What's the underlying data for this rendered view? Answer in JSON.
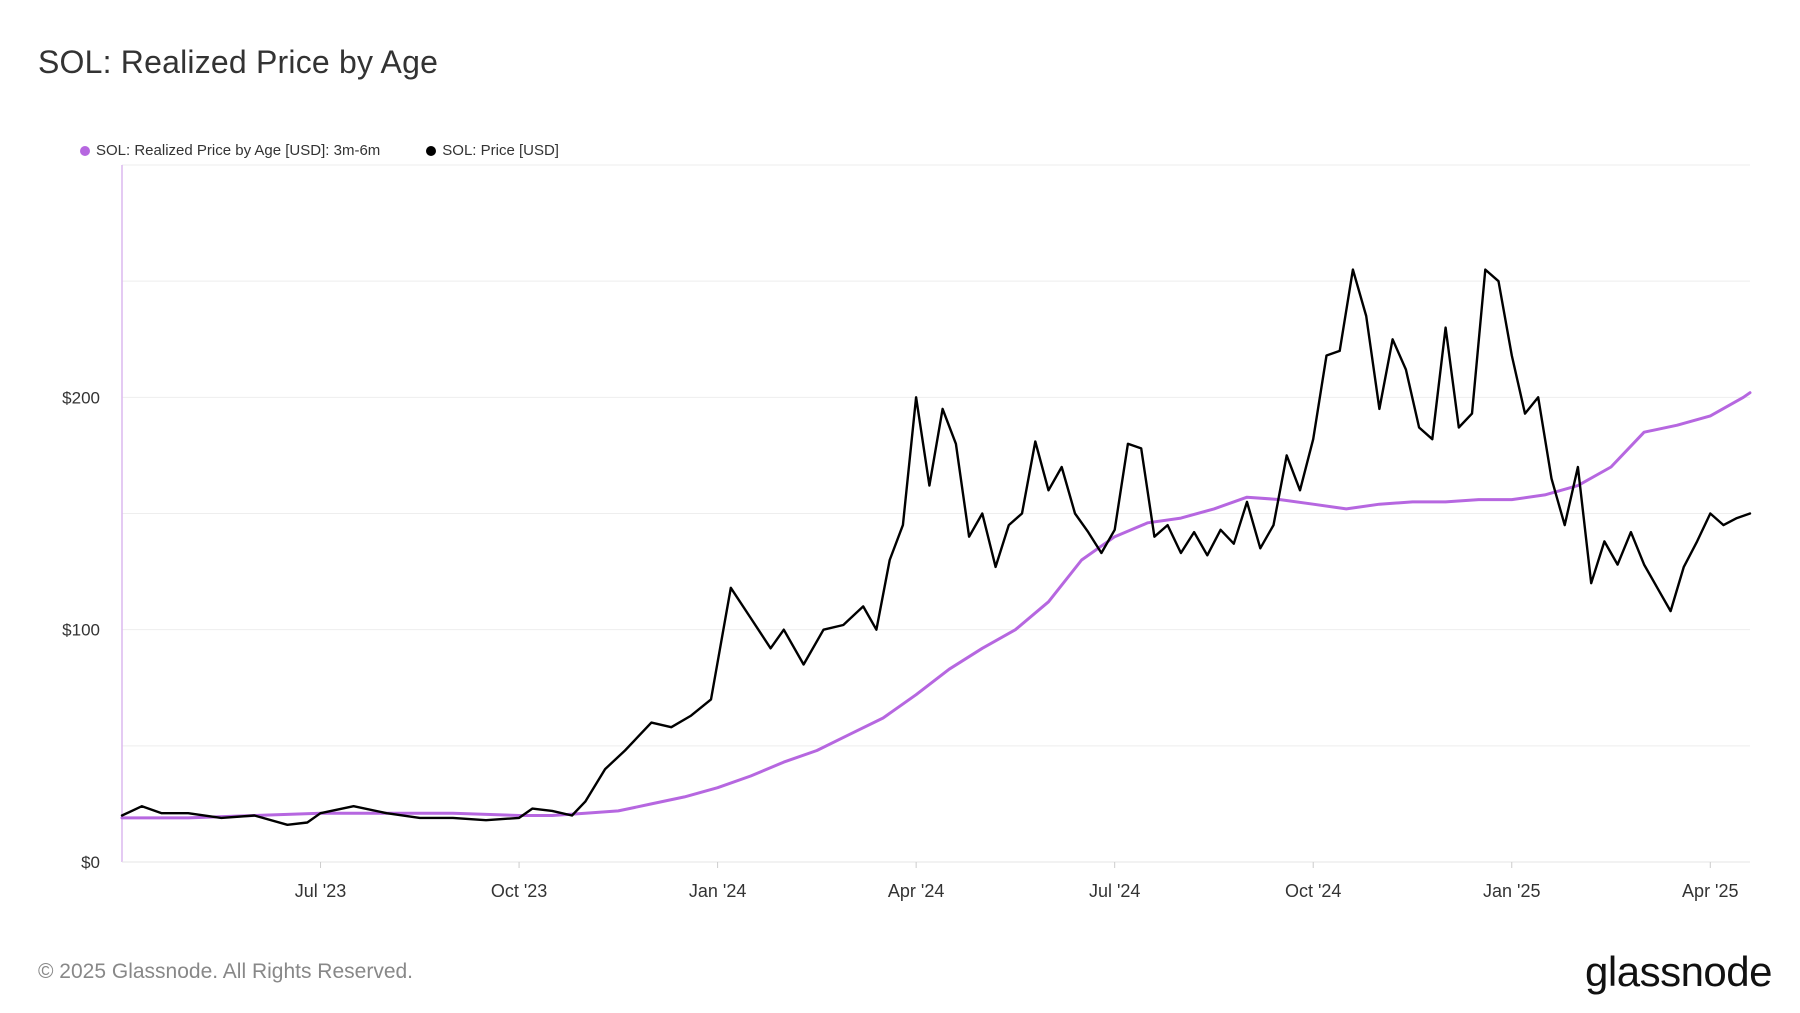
{
  "title": "SOL: Realized Price by Age",
  "legend": [
    {
      "label": "SOL: Realized Price by Age [USD]: 3m-6m",
      "color": "#b667e0"
    },
    {
      "label": "SOL: Price [USD]",
      "color": "#000000"
    }
  ],
  "footer": "© 2025 Glassnode. All Rights Reserved.",
  "logo": "glassnode",
  "chart_data": {
    "type": "line",
    "title": "SOL: Realized Price by Age",
    "xlabel": "",
    "ylabel": "",
    "ylim": [
      0,
      300
    ],
    "xlim": [
      0,
      24.6
    ],
    "yticks": [
      {
        "value": 0,
        "label": "$0"
      },
      {
        "value": 100,
        "label": "$100"
      },
      {
        "value": 200,
        "label": "$200"
      }
    ],
    "xticks": [
      {
        "value": 3,
        "label": "Jul '23"
      },
      {
        "value": 6,
        "label": "Oct '23"
      },
      {
        "value": 9,
        "label": "Jan '24"
      },
      {
        "value": 12,
        "label": "Apr '24"
      },
      {
        "value": 15,
        "label": "Jul '24"
      },
      {
        "value": 18,
        "label": "Oct '24"
      },
      {
        "value": 21,
        "label": "Jan '25"
      },
      {
        "value": 24,
        "label": "Apr '25"
      }
    ],
    "series": [
      {
        "name": "SOL: Realized Price by Age [USD]: 3m-6m",
        "color": "#b667e0",
        "x": [
          0,
          1,
          2,
          3,
          4,
          5,
          6,
          6.5,
          7,
          7.5,
          8,
          8.5,
          9,
          9.5,
          10,
          10.5,
          11,
          11.5,
          12,
          12.5,
          13,
          13.5,
          14,
          14.5,
          15,
          15.5,
          16,
          16.5,
          17,
          17.5,
          18,
          18.5,
          19,
          19.5,
          20,
          20.5,
          21,
          21.5,
          22,
          22.5,
          23,
          23.5,
          24,
          24.5,
          24.6
        ],
        "y": [
          19,
          19,
          20,
          21,
          21,
          21,
          20,
          20,
          21,
          22,
          25,
          28,
          32,
          37,
          43,
          48,
          55,
          62,
          72,
          83,
          92,
          100,
          112,
          130,
          140,
          146,
          148,
          152,
          157,
          156,
          154,
          152,
          154,
          155,
          155,
          156,
          156,
          158,
          162,
          170,
          185,
          188,
          192,
          200,
          202
        ]
      },
      {
        "name": "SOL: Price [USD]",
        "color": "#000000",
        "x": [
          0,
          0.3,
          0.6,
          1,
          1.5,
          2,
          2.5,
          2.8,
          3,
          3.5,
          4,
          4.5,
          5,
          5.5,
          6,
          6.2,
          6.5,
          6.8,
          7,
          7.3,
          7.6,
          8,
          8.3,
          8.6,
          8.9,
          9.2,
          9.5,
          9.8,
          10,
          10.3,
          10.6,
          10.9,
          11.2,
          11.4,
          11.6,
          11.8,
          12,
          12.2,
          12.4,
          12.6,
          12.8,
          13,
          13.2,
          13.4,
          13.6,
          13.8,
          14,
          14.2,
          14.4,
          14.6,
          14.8,
          15,
          15.2,
          15.4,
          15.6,
          15.8,
          16,
          16.2,
          16.4,
          16.6,
          16.8,
          17,
          17.2,
          17.4,
          17.6,
          17.8,
          18,
          18.2,
          18.4,
          18.6,
          18.8,
          19,
          19.2,
          19.4,
          19.6,
          19.8,
          20,
          20.2,
          20.4,
          20.6,
          20.8,
          21,
          21.2,
          21.4,
          21.6,
          21.8,
          22,
          22.2,
          22.4,
          22.6,
          22.8,
          23,
          23.2,
          23.4,
          23.6,
          23.8,
          24,
          24.2,
          24.4,
          24.6
        ],
        "y": [
          20,
          24,
          21,
          21,
          19,
          20,
          16,
          17,
          21,
          24,
          21,
          19,
          19,
          18,
          19,
          23,
          22,
          20,
          26,
          40,
          48,
          60,
          58,
          63,
          70,
          118,
          105,
          92,
          100,
          85,
          100,
          102,
          110,
          100,
          130,
          145,
          200,
          162,
          195,
          180,
          140,
          150,
          127,
          145,
          150,
          181,
          160,
          170,
          150,
          142,
          133,
          143,
          180,
          178,
          140,
          145,
          133,
          142,
          132,
          143,
          137,
          155,
          135,
          145,
          175,
          160,
          182,
          218,
          220,
          255,
          235,
          195,
          225,
          212,
          187,
          182,
          230,
          187,
          193,
          255,
          250,
          218,
          193,
          200,
          165,
          145,
          170,
          120,
          138,
          128,
          142,
          128,
          118,
          108,
          127,
          138,
          150,
          145,
          148,
          150
        ]
      }
    ]
  }
}
